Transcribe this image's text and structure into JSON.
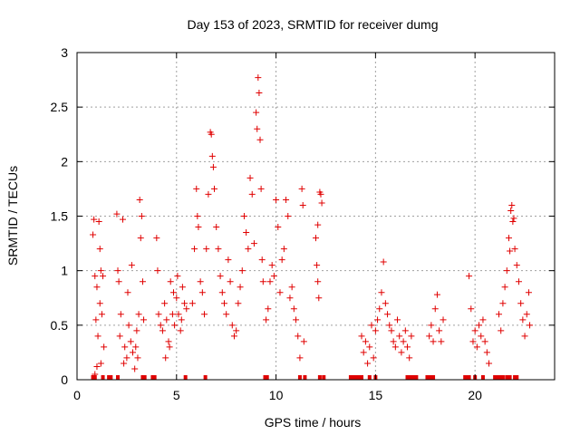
{
  "chart_data": {
    "type": "scatter",
    "title": "Day 153 of 2023, SRMTID for receiver dumg",
    "xlabel": "GPS time / hours",
    "ylabel": "SRMTID / TECUs",
    "xlim": [
      0,
      24
    ],
    "ylim": [
      0,
      3
    ],
    "xticks": [
      "0",
      "5",
      "10",
      "15",
      "20"
    ],
    "xtick_values": [
      0,
      5,
      10,
      15,
      20
    ],
    "yticks": [
      "0",
      "0.5",
      "1",
      "1.5",
      "2",
      "2.5",
      "3"
    ],
    "ytick_values": [
      0,
      0.5,
      1,
      1.5,
      2,
      2.5,
      3
    ],
    "grid": true,
    "marker": "+",
    "series": [
      {
        "name": "SRMTID",
        "color": "#e00000",
        "points": [
          [
            0.8,
            1.33
          ],
          [
            0.85,
            1.47
          ],
          [
            0.9,
            0.95
          ],
          [
            0.95,
            0.55
          ],
          [
            1.0,
            0.85
          ],
          [
            1.05,
            0.4
          ],
          [
            1.1,
            1.45
          ],
          [
            1.15,
            0.7
          ],
          [
            1.2,
            0.15
          ],
          [
            1.25,
            0.6
          ],
          [
            1.3,
            0.95
          ],
          [
            1.35,
            0.3
          ],
          [
            0.9,
            0.05
          ],
          [
            1.0,
            0.12
          ],
          [
            1.15,
            1.2
          ],
          [
            1.2,
            1.0
          ],
          [
            2.0,
            1.52
          ],
          [
            2.05,
            1.0
          ],
          [
            2.1,
            0.9
          ],
          [
            2.15,
            0.4
          ],
          [
            2.2,
            0.6
          ],
          [
            2.3,
            1.47
          ],
          [
            2.4,
            0.3
          ],
          [
            2.5,
            0.2
          ],
          [
            2.6,
            0.5
          ],
          [
            2.7,
            0.35
          ],
          [
            2.8,
            0.25
          ],
          [
            2.9,
            0.1
          ],
          [
            3.0,
            0.45
          ],
          [
            3.1,
            0.6
          ],
          [
            3.15,
            1.65
          ],
          [
            3.2,
            1.3
          ],
          [
            3.25,
            1.5
          ],
          [
            3.3,
            0.9
          ],
          [
            3.35,
            0.55
          ],
          [
            2.55,
            0.8
          ],
          [
            2.75,
            1.05
          ],
          [
            2.95,
            0.3
          ],
          [
            3.05,
            0.2
          ],
          [
            2.35,
            0.15
          ],
          [
            4.0,
            1.3
          ],
          [
            4.05,
            1.0
          ],
          [
            4.1,
            0.6
          ],
          [
            4.2,
            0.5
          ],
          [
            4.3,
            0.45
          ],
          [
            4.4,
            0.7
          ],
          [
            4.5,
            0.55
          ],
          [
            4.6,
            0.35
          ],
          [
            4.7,
            0.9
          ],
          [
            4.8,
            0.6
          ],
          [
            4.9,
            0.5
          ],
          [
            5.0,
            0.75
          ],
          [
            5.1,
            0.6
          ],
          [
            5.2,
            0.45
          ],
          [
            5.3,
            0.85
          ],
          [
            5.4,
            0.7
          ],
          [
            5.5,
            0.65
          ],
          [
            4.45,
            0.2
          ],
          [
            4.65,
            0.3
          ],
          [
            4.85,
            0.8
          ],
          [
            5.05,
            0.95
          ],
          [
            5.25,
            0.55
          ],
          [
            5.8,
            0.7
          ],
          [
            5.9,
            1.2
          ],
          [
            6.0,
            1.75
          ],
          [
            6.05,
            1.5
          ],
          [
            6.1,
            1.4
          ],
          [
            6.2,
            0.9
          ],
          [
            6.3,
            0.8
          ],
          [
            6.4,
            0.6
          ],
          [
            6.5,
            1.2
          ],
          [
            6.6,
            1.7
          ],
          [
            6.7,
            2.27
          ],
          [
            6.75,
            2.25
          ],
          [
            6.8,
            2.05
          ],
          [
            6.85,
            1.95
          ],
          [
            6.9,
            1.75
          ],
          [
            7.0,
            1.4
          ],
          [
            7.1,
            1.2
          ],
          [
            7.2,
            0.95
          ],
          [
            7.3,
            0.8
          ],
          [
            7.4,
            0.7
          ],
          [
            7.5,
            0.6
          ],
          [
            7.6,
            1.1
          ],
          [
            7.7,
            0.9
          ],
          [
            7.8,
            0.5
          ],
          [
            7.9,
            0.4
          ],
          [
            8.0,
            0.45
          ],
          [
            8.1,
            0.7
          ],
          [
            8.2,
            0.85
          ],
          [
            8.3,
            1.0
          ],
          [
            8.4,
            1.5
          ],
          [
            8.5,
            1.35
          ],
          [
            8.6,
            1.2
          ],
          [
            8.7,
            1.85
          ],
          [
            8.8,
            1.7
          ],
          [
            8.9,
            1.25
          ],
          [
            9.0,
            2.45
          ],
          [
            9.05,
            2.3
          ],
          [
            9.1,
            2.77
          ],
          [
            9.15,
            2.63
          ],
          [
            9.2,
            2.2
          ],
          [
            9.25,
            1.75
          ],
          [
            9.3,
            1.1
          ],
          [
            9.35,
            0.9
          ],
          [
            9.5,
            0.55
          ],
          [
            9.6,
            0.65
          ],
          [
            9.7,
            0.9
          ],
          [
            9.8,
            1.05
          ],
          [
            9.9,
            0.95
          ],
          [
            10.0,
            1.65
          ],
          [
            10.1,
            1.4
          ],
          [
            10.2,
            0.8
          ],
          [
            10.3,
            1.1
          ],
          [
            10.4,
            1.2
          ],
          [
            10.5,
            1.65
          ],
          [
            10.6,
            1.5
          ],
          [
            10.7,
            0.75
          ],
          [
            10.8,
            0.85
          ],
          [
            10.9,
            0.65
          ],
          [
            11.0,
            0.55
          ],
          [
            11.1,
            0.4
          ],
          [
            11.2,
            0.2
          ],
          [
            11.3,
            1.75
          ],
          [
            11.35,
            1.6
          ],
          [
            11.4,
            0.35
          ],
          [
            12.0,
            1.3
          ],
          [
            12.05,
            1.05
          ],
          [
            12.1,
            0.9
          ],
          [
            12.15,
            0.75
          ],
          [
            12.2,
            1.72
          ],
          [
            12.25,
            1.7
          ],
          [
            12.3,
            1.62
          ],
          [
            12.1,
            1.42
          ],
          [
            14.3,
            0.4
          ],
          [
            14.4,
            0.25
          ],
          [
            14.5,
            0.35
          ],
          [
            14.6,
            0.15
          ],
          [
            14.7,
            0.3
          ],
          [
            14.8,
            0.5
          ],
          [
            14.9,
            0.2
          ],
          [
            15.0,
            0.45
          ],
          [
            15.1,
            0.55
          ],
          [
            15.2,
            0.65
          ],
          [
            15.3,
            0.8
          ],
          [
            15.4,
            1.08
          ],
          [
            15.5,
            0.7
          ],
          [
            15.6,
            0.6
          ],
          [
            15.7,
            0.5
          ],
          [
            15.8,
            0.45
          ],
          [
            15.9,
            0.35
          ],
          [
            16.0,
            0.3
          ],
          [
            16.1,
            0.55
          ],
          [
            16.2,
            0.4
          ],
          [
            16.3,
            0.25
          ],
          [
            16.4,
            0.35
          ],
          [
            16.5,
            0.45
          ],
          [
            16.6,
            0.3
          ],
          [
            16.7,
            0.2
          ],
          [
            16.8,
            0.4
          ],
          [
            17.7,
            0.4
          ],
          [
            17.8,
            0.5
          ],
          [
            17.9,
            0.35
          ],
          [
            18.0,
            0.65
          ],
          [
            18.1,
            0.78
          ],
          [
            18.2,
            0.45
          ],
          [
            18.3,
            0.35
          ],
          [
            18.4,
            0.55
          ],
          [
            19.7,
            0.95
          ],
          [
            19.8,
            0.65
          ],
          [
            19.9,
            0.35
          ],
          [
            20.0,
            0.45
          ],
          [
            20.1,
            0.3
          ],
          [
            20.2,
            0.5
          ],
          [
            20.3,
            0.4
          ],
          [
            20.4,
            0.55
          ],
          [
            20.5,
            0.35
          ],
          [
            20.6,
            0.25
          ],
          [
            20.7,
            0.15
          ],
          [
            21.2,
            0.6
          ],
          [
            21.3,
            0.45
          ],
          [
            21.4,
            0.7
          ],
          [
            21.5,
            0.85
          ],
          [
            21.6,
            1.0
          ],
          [
            21.7,
            1.3
          ],
          [
            21.8,
            1.55
          ],
          [
            21.85,
            1.6
          ],
          [
            21.9,
            1.45
          ],
          [
            22.0,
            1.2
          ],
          [
            22.1,
            1.05
          ],
          [
            22.2,
            0.9
          ],
          [
            22.3,
            0.7
          ],
          [
            22.4,
            0.55
          ],
          [
            22.5,
            0.4
          ],
          [
            22.6,
            0.6
          ],
          [
            22.7,
            0.8
          ],
          [
            22.75,
            0.5
          ],
          [
            21.95,
            1.48
          ],
          [
            21.75,
            1.18
          ]
        ]
      }
    ],
    "baseline_markers": [
      0.8,
      0.85,
      0.9,
      1.3,
      1.6,
      1.7,
      2.05,
      3.3,
      3.4,
      3.8,
      3.9,
      5.45,
      6.45,
      9.45,
      9.5,
      9.55,
      11.2,
      11.45,
      12.2,
      12.4,
      13.75,
      13.9,
      14.0,
      14.1,
      14.25,
      14.3,
      14.7,
      15.0,
      16.6,
      16.7,
      16.8,
      16.9,
      17.05,
      17.6,
      17.7,
      17.8,
      17.9,
      19.5,
      19.6,
      19.7,
      20.0,
      20.4,
      21.0,
      21.1,
      21.2,
      21.3,
      21.4,
      21.6,
      21.75,
      22.0,
      22.1
    ]
  }
}
